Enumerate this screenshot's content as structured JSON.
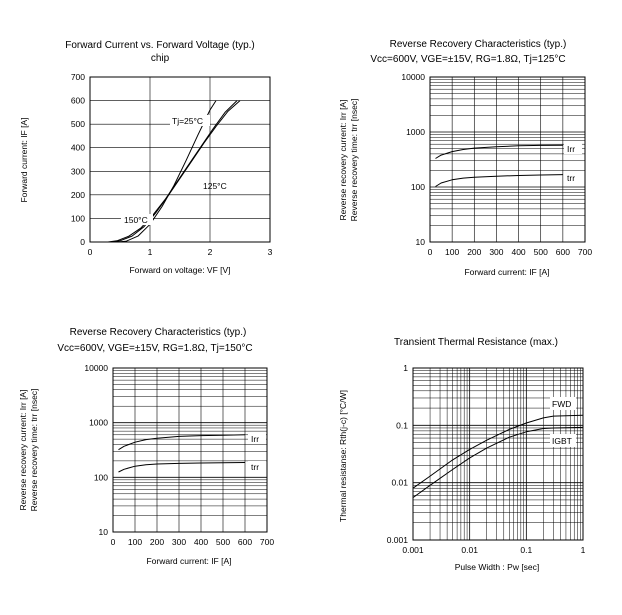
{
  "chart_data": [
    {
      "id": "fwd",
      "type": "line",
      "title": "Forward Current vs. Forward Voltage (typ.)",
      "subtitle": "chip",
      "xlabel": "Forward on voltage: VF [V]",
      "ylabel": "Forward current: IF [A]",
      "xlim": [
        0,
        3
      ],
      "ylim": [
        0,
        700
      ],
      "x_ticks": [
        "0",
        "1",
        "2",
        "3"
      ],
      "y_ticks": [
        "0",
        "100",
        "200",
        "300",
        "400",
        "500",
        "600",
        "700"
      ],
      "grid": true,
      "series": [
        {
          "name": "Tj=25°C",
          "x": [
            0.45,
            0.6,
            0.8,
            1.0,
            1.2,
            1.4,
            1.6,
            1.8,
            2.0,
            2.1
          ],
          "y": [
            0,
            3,
            25,
            75,
            150,
            240,
            345,
            455,
            560,
            600
          ]
        },
        {
          "name": "125°C",
          "x": [
            0.35,
            0.5,
            0.7,
            0.9,
            1.1,
            1.3,
            1.5,
            1.7,
            1.9,
            2.1,
            2.3,
            2.5
          ],
          "y": [
            0,
            5,
            25,
            65,
            125,
            195,
            270,
            345,
            420,
            490,
            555,
            600
          ]
        },
        {
          "name": "150°C",
          "x": [
            0.3,
            0.45,
            0.65,
            0.85,
            1.05,
            1.25,
            1.45,
            1.65,
            1.85,
            2.05,
            2.25,
            2.45
          ],
          "y": [
            0,
            5,
            25,
            60,
            115,
            180,
            255,
            330,
            405,
            480,
            550,
            600
          ]
        }
      ]
    },
    {
      "id": "rr125",
      "type": "line",
      "title": "Reverse Recovery Characteristics (typ.)",
      "subtitle": "Vcc=600V, VGE=±15V, RG=1.8Ω, Tj=125°C",
      "xlabel": "Forward current: IF [A]",
      "ylabel": [
        "Reverse recovery current: Irr [A]",
        "Reverse recovery time: trr [nsec]"
      ],
      "xlim": [
        0,
        700
      ],
      "ylim": [
        10,
        10000
      ],
      "yscale": "log",
      "x_ticks": [
        "0",
        "100",
        "200",
        "300",
        "400",
        "500",
        "600",
        "700"
      ],
      "y_ticks": [
        "10",
        "100",
        "1000",
        "10000"
      ],
      "grid": true,
      "series": [
        {
          "name": "Irr",
          "x": [
            25,
            50,
            100,
            150,
            200,
            300,
            400,
            500,
            600
          ],
          "y": [
            330,
            380,
            440,
            480,
            510,
            540,
            560,
            570,
            575
          ]
        },
        {
          "name": "trr",
          "x": [
            25,
            50,
            100,
            150,
            200,
            300,
            400,
            500,
            600
          ],
          "y": [
            102,
            118,
            135,
            145,
            150,
            157,
            162,
            165,
            168
          ]
        }
      ]
    },
    {
      "id": "rr150",
      "type": "line",
      "title": "Reverse Recovery Characteristics (typ.)",
      "subtitle": "Vcc=600V, VGE=±15V, RG=1.8Ω, Tj=150°C",
      "xlabel": "Forward current: IF [A]",
      "ylabel": [
        "Reverse recovery current: Irr [A]",
        "Reverse recovery time: trr [nsec]"
      ],
      "xlim": [
        0,
        700
      ],
      "ylim": [
        10,
        10000
      ],
      "yscale": "log",
      "x_ticks": [
        "0",
        "100",
        "200",
        "300",
        "400",
        "500",
        "600",
        "700"
      ],
      "y_ticks": [
        "10",
        "100",
        "1000",
        "10000"
      ],
      "grid": true,
      "series": [
        {
          "name": "Irr",
          "x": [
            25,
            50,
            100,
            150,
            200,
            300,
            400,
            500,
            600
          ],
          "y": [
            320,
            370,
            440,
            490,
            520,
            560,
            580,
            590,
            600
          ]
        },
        {
          "name": "trr",
          "x": [
            25,
            50,
            100,
            150,
            200,
            300,
            400,
            500,
            600
          ],
          "y": [
            125,
            140,
            160,
            170,
            175,
            180,
            183,
            185,
            187
          ]
        }
      ]
    },
    {
      "id": "zth",
      "type": "line",
      "title": "Transient Thermal Resistance (max.)",
      "xlabel": "Pulse Width : Pw [sec]",
      "ylabel": "Thermal resistanse: Rth(j-c) [°C/W]",
      "xlim": [
        0.001,
        1
      ],
      "ylim": [
        0.001,
        1
      ],
      "xscale": "log",
      "yscale": "log",
      "x_ticks": [
        "0.001",
        "0.01",
        "0.1",
        "1"
      ],
      "y_ticks": [
        "0.001",
        "0.01",
        "0.1",
        "1"
      ],
      "grid": true,
      "series": [
        {
          "name": "FWD",
          "x": [
            0.001,
            0.002,
            0.005,
            0.01,
            0.02,
            0.05,
            0.1,
            0.2,
            0.3,
            1
          ],
          "y": [
            0.008,
            0.013,
            0.025,
            0.038,
            0.055,
            0.085,
            0.11,
            0.135,
            0.145,
            0.15
          ]
        },
        {
          "name": "IGBT",
          "x": [
            0.001,
            0.002,
            0.005,
            0.01,
            0.02,
            0.05,
            0.1,
            0.2,
            0.3,
            1
          ],
          "y": [
            0.0055,
            0.009,
            0.017,
            0.027,
            0.04,
            0.062,
            0.077,
            0.088,
            0.09,
            0.092
          ]
        }
      ]
    }
  ]
}
